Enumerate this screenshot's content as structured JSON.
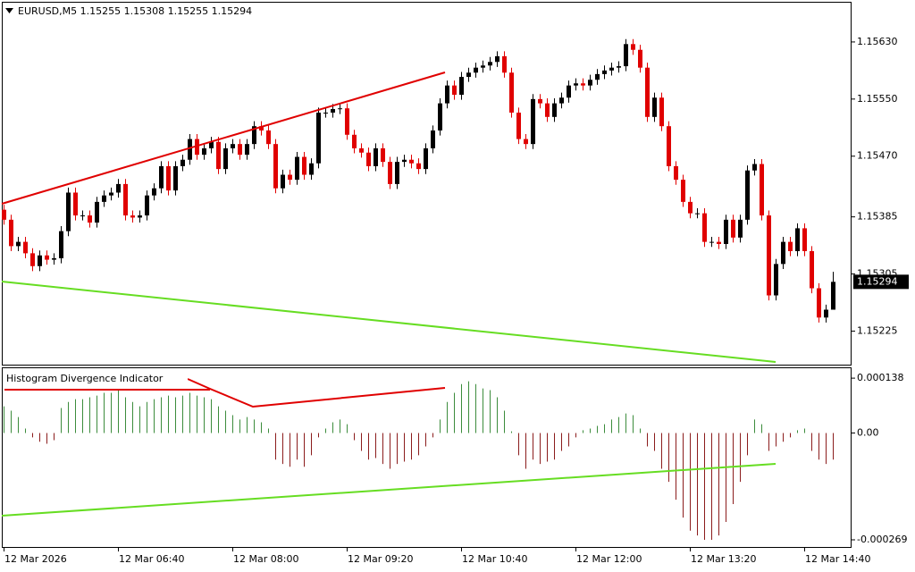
{
  "chart_data": {
    "type": "candlestick",
    "title": "EURUSD,M5  1.15255 1.15308 1.15255 1.15294",
    "up_color": "#000000",
    "down_color": "#e00000",
    "categories": [
      "12 Mar 2026",
      null,
      null,
      null,
      null,
      null,
      null,
      null,
      null,
      null,
      null,
      null,
      null,
      null,
      null,
      null,
      "12 Mar 06:40",
      null,
      null,
      null,
      null,
      null,
      null,
      null,
      null,
      null,
      null,
      null,
      null,
      null,
      null,
      null,
      "12 Mar 08:00",
      null,
      null,
      null,
      null,
      null,
      null,
      null,
      null,
      null,
      null,
      null,
      null,
      null,
      null,
      null,
      "12 Mar 09:20",
      null,
      null,
      null,
      null,
      null,
      null,
      null,
      null,
      null,
      null,
      null,
      null,
      null,
      null,
      null,
      "12 Mar 10:40",
      null,
      null,
      null,
      null,
      null,
      null,
      null,
      null,
      null,
      null,
      null,
      null,
      null,
      null,
      null,
      "12 Mar 12:00",
      null,
      null,
      null,
      null,
      null,
      null,
      null,
      null,
      null,
      null,
      null,
      null,
      null,
      null,
      null,
      "12 Mar 13:20",
      null,
      null,
      null,
      null,
      null,
      null,
      null,
      null,
      null,
      null,
      null,
      null,
      null,
      null,
      null,
      "12 Mar 14:40",
      null,
      null,
      null,
      null
    ],
    "open": [
      1.15395,
      1.15381,
      1.15344,
      1.1535,
      1.15334,
      1.15316,
      1.15331,
      1.15325,
      1.15327,
      1.15365,
      1.15419,
      1.15387,
      1.15387,
      1.15377,
      1.15406,
      1.15415,
      1.15419,
      1.15431,
      1.15387,
      1.15384,
      1.15387,
      1.15415,
      1.15425,
      1.15456,
      1.15422,
      1.15456,
      1.15465,
      1.15494,
      1.15472,
      1.15481,
      1.1549,
      1.15452,
      1.15481,
      1.15487,
      1.15472,
      1.15487,
      1.15512,
      1.15506,
      1.15487,
      1.15425,
      1.15444,
      1.15437,
      1.15469,
      1.15444,
      1.1546,
      1.15531,
      1.15531,
      1.15536,
      1.15537,
      1.155,
      1.15481,
      1.15475,
      1.15456,
      1.15481,
      1.15462,
      1.15431,
      1.15462,
      1.15465,
      1.1546,
      1.15452,
      1.15481,
      1.15506,
      1.15544,
      1.15569,
      1.15556,
      1.15581,
      1.15587,
      1.15594,
      1.15597,
      1.15602,
      1.1561,
      1.15587,
      1.15531,
      1.15494,
      1.15487,
      1.1555,
      1.15544,
      1.15525,
      1.15544,
      1.15552,
      1.15569,
      1.15572,
      1.15569,
      1.15577,
      1.15585,
      1.1559,
      1.15594,
      1.15596,
      1.15627,
      1.15619,
      1.15594,
      1.15525,
      1.15552,
      1.15512,
      1.15456,
      1.15437,
      1.15406,
      1.1539,
      1.1539,
      1.1535,
      1.1535,
      1.15347,
      1.15381,
      1.15356,
      1.15381,
      1.1545,
      1.15459,
      1.15387,
      1.15275,
      1.15319,
      1.1535,
      1.15337,
      1.15369,
      1.15337,
      1.15285,
      1.15244,
      1.15255
    ],
    "high": [
      1.15402,
      1.15388,
      1.15357,
      1.15357,
      1.15341,
      1.15338,
      1.15338,
      1.15334,
      1.15372,
      1.15426,
      1.15426,
      1.15394,
      1.15394,
      1.15413,
      1.15422,
      1.15426,
      1.15438,
      1.15438,
      1.15394,
      1.15394,
      1.15422,
      1.15432,
      1.15463,
      1.15463,
      1.15463,
      1.15472,
      1.15501,
      1.15501,
      1.15488,
      1.15497,
      1.15497,
      1.15488,
      1.15494,
      1.15494,
      1.15494,
      1.15519,
      1.15519,
      1.15513,
      1.15494,
      1.15451,
      1.15451,
      1.15476,
      1.15476,
      1.15467,
      1.15538,
      1.15538,
      1.15543,
      1.15544,
      1.15544,
      1.15507,
      1.15488,
      1.15482,
      1.15488,
      1.15488,
      1.15469,
      1.15469,
      1.15472,
      1.15472,
      1.15467,
      1.15488,
      1.15513,
      1.15551,
      1.15576,
      1.15576,
      1.15588,
      1.15594,
      1.15601,
      1.15604,
      1.15609,
      1.15617,
      1.15617,
      1.15594,
      1.15538,
      1.15501,
      1.15557,
      1.15557,
      1.15551,
      1.15551,
      1.15559,
      1.15576,
      1.15579,
      1.15579,
      1.15584,
      1.15592,
      1.15597,
      1.15601,
      1.15603,
      1.15634,
      1.15634,
      1.15626,
      1.15601,
      1.15559,
      1.15559,
      1.15519,
      1.15463,
      1.15444,
      1.15413,
      1.15397,
      1.15397,
      1.15357,
      1.15357,
      1.15388,
      1.15388,
      1.15388,
      1.15457,
      1.15466,
      1.15466,
      1.15394,
      1.15326,
      1.15357,
      1.15357,
      1.15376,
      1.15376,
      1.15344,
      1.15292,
      1.15262,
      1.15308
    ],
    "low": [
      1.15374,
      1.15337,
      1.15337,
      1.15327,
      1.15309,
      1.15309,
      1.15318,
      1.15318,
      1.1532,
      1.15358,
      1.1538,
      1.1538,
      1.1537,
      1.1537,
      1.15399,
      1.15408,
      1.15412,
      1.1538,
      1.15377,
      1.15377,
      1.1538,
      1.15408,
      1.15418,
      1.15415,
      1.15415,
      1.15449,
      1.15458,
      1.15465,
      1.15465,
      1.15474,
      1.15445,
      1.15445,
      1.15474,
      1.15465,
      1.15465,
      1.1548,
      1.15499,
      1.1548,
      1.15418,
      1.15418,
      1.1543,
      1.1543,
      1.15437,
      1.15437,
      1.15453,
      1.15524,
      1.15524,
      1.15529,
      1.15493,
      1.15474,
      1.15468,
      1.15449,
      1.15449,
      1.15455,
      1.15424,
      1.15424,
      1.15455,
      1.15453,
      1.15445,
      1.15445,
      1.15474,
      1.15499,
      1.15537,
      1.15549,
      1.15549,
      1.15574,
      1.1558,
      1.15587,
      1.1559,
      1.15595,
      1.1558,
      1.15524,
      1.15487,
      1.1548,
      1.1548,
      1.15537,
      1.15518,
      1.15518,
      1.15537,
      1.15545,
      1.15562,
      1.15562,
      1.15562,
      1.1557,
      1.15578,
      1.15583,
      1.15587,
      1.15589,
      1.15612,
      1.15587,
      1.15518,
      1.15518,
      1.15505,
      1.15449,
      1.1543,
      1.15399,
      1.15383,
      1.15383,
      1.15343,
      1.15343,
      1.1534,
      1.1534,
      1.15349,
      1.15349,
      1.15374,
      1.15443,
      1.1538,
      1.15268,
      1.15268,
      1.15312,
      1.1533,
      1.1533,
      1.1533,
      1.15278,
      1.15237,
      1.15237,
      1.15255
    ],
    "close": [
      1.15381,
      1.15344,
      1.1535,
      1.15334,
      1.15316,
      1.15331,
      1.15325,
      1.15327,
      1.15365,
      1.15419,
      1.15387,
      1.15387,
      1.15377,
      1.15406,
      1.15415,
      1.15419,
      1.15431,
      1.15387,
      1.15384,
      1.15387,
      1.15415,
      1.15425,
      1.15456,
      1.15422,
      1.15456,
      1.15465,
      1.15494,
      1.15472,
      1.15481,
      1.1549,
      1.15452,
      1.15481,
      1.15487,
      1.15472,
      1.15487,
      1.15512,
      1.15506,
      1.15487,
      1.15425,
      1.15444,
      1.15437,
      1.15469,
      1.15444,
      1.1546,
      1.15531,
      1.15531,
      1.15536,
      1.15537,
      1.155,
      1.15481,
      1.15475,
      1.15456,
      1.15481,
      1.15462,
      1.15431,
      1.15462,
      1.15465,
      1.1546,
      1.15452,
      1.15481,
      1.15506,
      1.15544,
      1.15569,
      1.15556,
      1.15581,
      1.15587,
      1.15594,
      1.15597,
      1.15602,
      1.1561,
      1.15587,
      1.15531,
      1.15494,
      1.15487,
      1.1555,
      1.15544,
      1.15525,
      1.15544,
      1.15552,
      1.15569,
      1.15572,
      1.15569,
      1.15577,
      1.15585,
      1.1559,
      1.15594,
      1.15596,
      1.15627,
      1.15619,
      1.15594,
      1.15525,
      1.15552,
      1.15512,
      1.15456,
      1.15437,
      1.15406,
      1.1539,
      1.1539,
      1.1535,
      1.1535,
      1.15347,
      1.15381,
      1.15356,
      1.15381,
      1.1545,
      1.15459,
      1.15387,
      1.15275,
      1.15319,
      1.1535,
      1.15337,
      1.15369,
      1.15337,
      1.15285,
      1.15244,
      1.15255,
      1.15294
    ],
    "ylim": [
      1.15178,
      1.15685
    ],
    "yticks": [
      {
        "value": 1.1563,
        "label": "1.15630"
      },
      {
        "value": 1.1555,
        "label": "1.15550"
      },
      {
        "value": 1.1547,
        "label": "1.15470"
      },
      1.15385,
      1.15305,
      1.15225
    ],
    "indicator": {
      "type": "bar",
      "title": "Histogram Divergence Indicator",
      "positive_color": "#3c8c3c",
      "negative_color": "#8b1c1c",
      "values": [
        6.7e-05,
        5.6e-05,
        4e-05,
        1.1e-05,
        -1.1e-05,
        -2.2e-05,
        -2.7e-05,
        -1.8e-05,
        6.3e-05,
        7.8e-05,
        8.5e-05,
        8.5e-05,
        9e-05,
        9.4e-05,
        0.000101,
        0.000101,
        0.000108,
        9e-05,
        7.8e-05,
        6.7e-05,
        7.8e-05,
        8.5e-05,
        9e-05,
        9.4e-05,
        9e-05,
        9.4e-05,
        0.000101,
        9.4e-05,
        9e-05,
        8.5e-05,
        6.7e-05,
        5.6e-05,
        4.5e-05,
        3.4e-05,
        4e-05,
        3.4e-05,
        2.7e-05,
        1.1e-05,
        -6.7e-05,
        -7.8e-05,
        -8.5e-05,
        -6.7e-05,
        -8.5e-05,
        -5.6e-05,
        -1.1e-05,
        1.1e-05,
        2.7e-05,
        3.4e-05,
        2.2e-05,
        -1.8e-05,
        -4.5e-05,
        -6.7e-05,
        -6.3e-05,
        -7.8e-05,
        -9e-05,
        -7.8e-05,
        -7.2e-05,
        -6.7e-05,
        -5.6e-05,
        -3.4e-05,
        -1.1e-05,
        3.4e-05,
        7.8e-05,
        0.000101,
        0.000123,
        0.00013,
        0.000123,
        0.000112,
        0.000108,
        9e-05,
        5.6e-05,
        4e-06,
        -5.6e-05,
        -9e-05,
        -6.7e-05,
        -7.8e-05,
        -7.2e-05,
        -6.7e-05,
        -4.5e-05,
        -3.4e-05,
        -1.1e-05,
        7e-06,
        1.1e-05,
        1.8e-05,
        2.2e-05,
        3.4e-05,
        4e-05,
        4.9e-05,
        4.5e-05,
        1.1e-05,
        -3.4e-05,
        -4.5e-05,
        -9e-05,
        -0.000123,
        -0.000168,
        -0.000213,
        -0.000246,
        -0.000258,
        -0.000269,
        -0.000269,
        -0.000258,
        -0.000224,
        -0.000179,
        -0.000123,
        -5.6e-05,
        3.4e-05,
        2.2e-05,
        -4.5e-05,
        -3.4e-05,
        -2.2e-05,
        -1.1e-05,
        7e-06,
        1.1e-05,
        -4.5e-05,
        -6.7e-05,
        -7.8e-05,
        -6.7e-05
      ],
      "ylim": [
        -0.000287,
        0.000163
      ],
      "yticks": [
        0.000138,
        {
          "value": 0,
          "label": "0.00"
        },
        -0.000269
      ]
    }
  }
}
